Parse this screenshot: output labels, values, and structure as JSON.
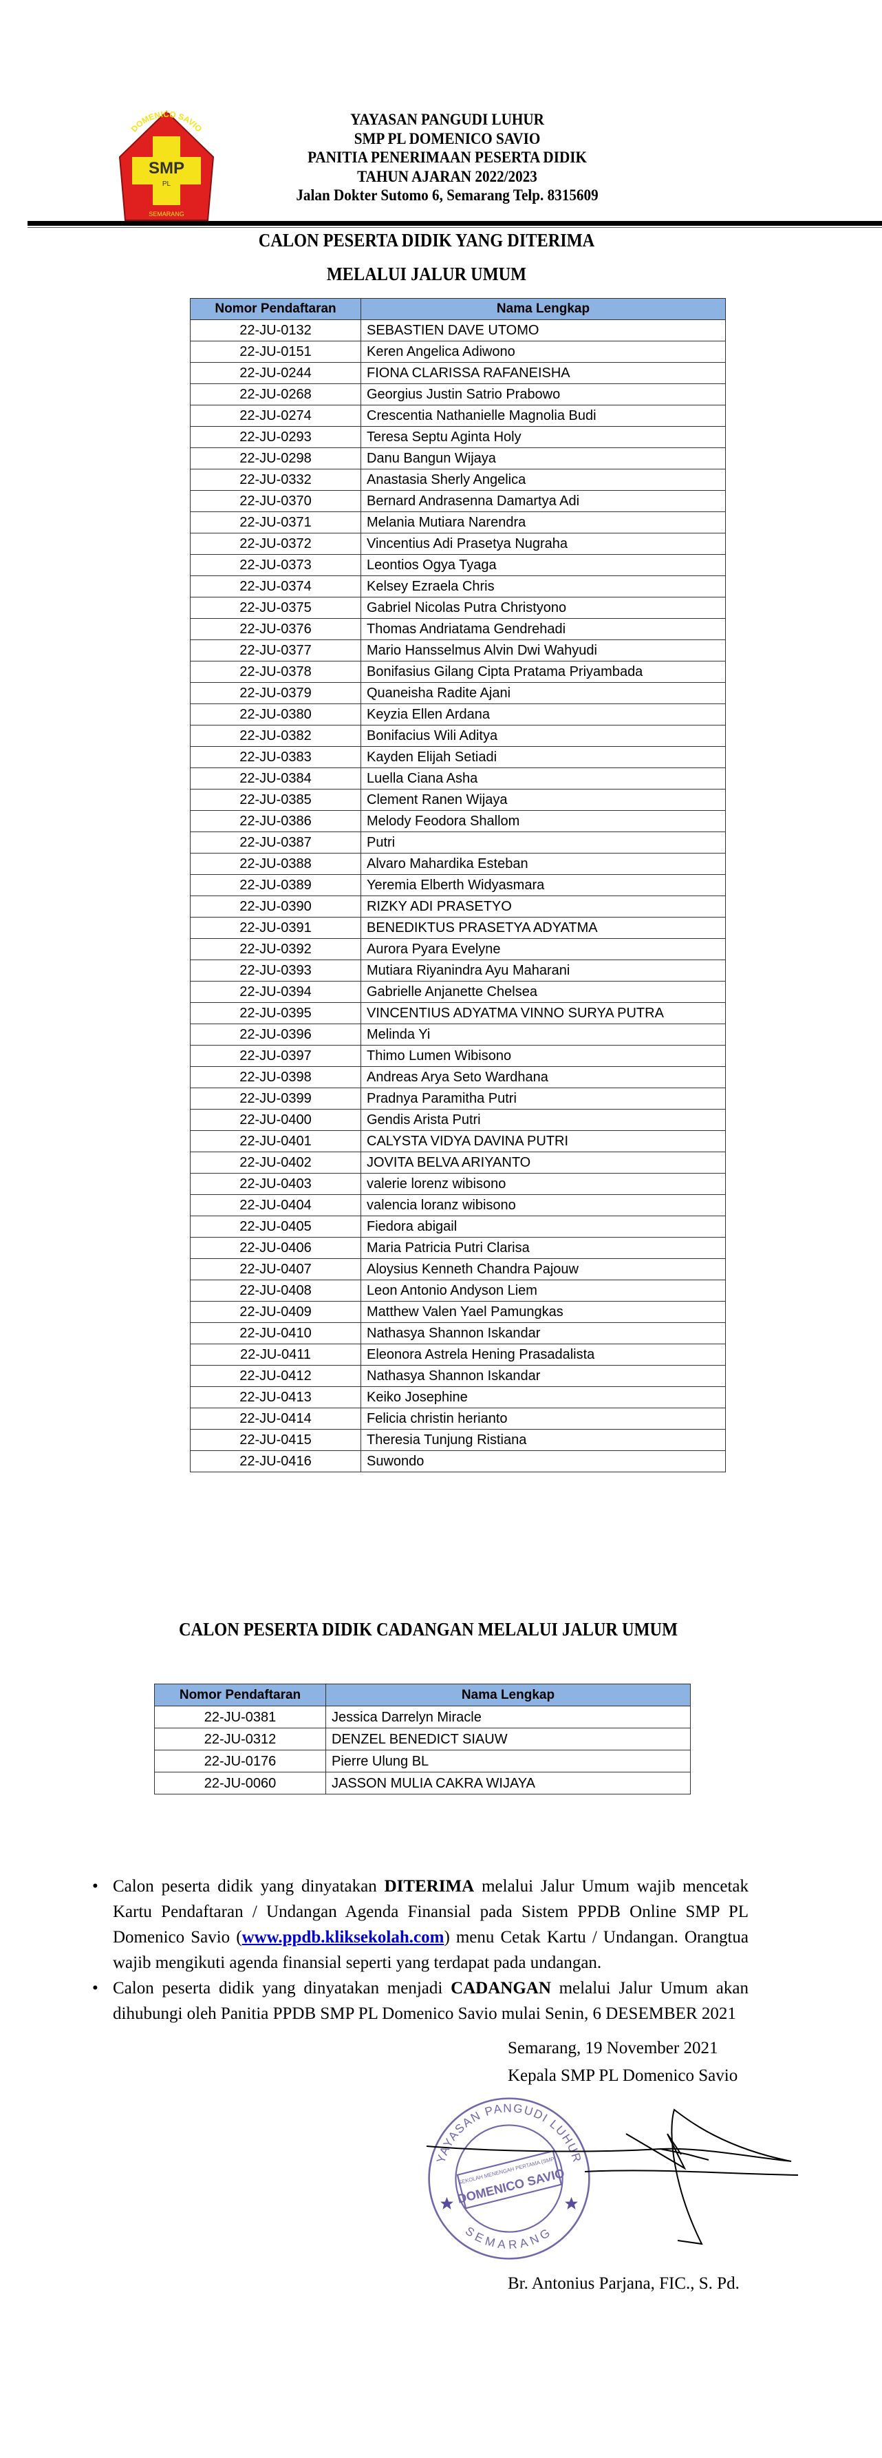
{
  "logo": {
    "ring_text": "DOMENICO SAVIO",
    "center_text": "SMP",
    "sub_text": "PL",
    "bottom_text": "SEMARANG"
  },
  "header": {
    "lines": [
      "YAYASAN PANGUDI LUHUR",
      "SMP PL DOMENICO SAVIO",
      "PANITIA PENERIMAAN PESERTA DIDIK",
      "TAHUN AJARAN 2022/2023",
      "Jalan Dokter Sutomo 6, Semarang Telp. 8315609"
    ]
  },
  "accepted": {
    "title_line1": "CALON PESERTA DIDIK YANG DITERIMA",
    "title_line2": "MELALUI JALUR UMUM",
    "columns": [
      "Nomor Pendaftaran",
      "Nama Lengkap"
    ],
    "rows": [
      [
        "22-JU-0132",
        "SEBASTIEN DAVE UTOMO"
      ],
      [
        "22-JU-0151",
        "Keren Angelica Adiwono"
      ],
      [
        "22-JU-0244",
        "FIONA CLARISSA RAFANEISHA"
      ],
      [
        "22-JU-0268",
        "Georgius Justin Satrio Prabowo"
      ],
      [
        "22-JU-0274",
        "Crescentia Nathanielle Magnolia Budi"
      ],
      [
        "22-JU-0293",
        "Teresa Septu Aginta Holy"
      ],
      [
        "22-JU-0298",
        "Danu Bangun Wijaya"
      ],
      [
        "22-JU-0332",
        "Anastasia Sherly Angelica"
      ],
      [
        "22-JU-0370",
        "Bernard Andrasenna Damartya Adi"
      ],
      [
        "22-JU-0371",
        "Melania Mutiara Narendra"
      ],
      [
        "22-JU-0372",
        "Vincentius Adi Prasetya Nugraha"
      ],
      [
        "22-JU-0373",
        "Leontios Ogya Tyaga"
      ],
      [
        "22-JU-0374",
        "Kelsey Ezraela Chris"
      ],
      [
        "22-JU-0375",
        "Gabriel Nicolas Putra Christyono"
      ],
      [
        "22-JU-0376",
        "Thomas Andriatama Gendrehadi"
      ],
      [
        "22-JU-0377",
        "Mario Hansselmus Alvin Dwi Wahyudi"
      ],
      [
        "22-JU-0378",
        "Bonifasius Gilang Cipta Pratama Priyambada"
      ],
      [
        "22-JU-0379",
        "Quaneisha Radite Ajani"
      ],
      [
        "22-JU-0380",
        "Keyzia Ellen Ardana"
      ],
      [
        "22-JU-0382",
        "Bonifacius Wili Aditya"
      ],
      [
        "22-JU-0383",
        "Kayden Elijah Setiadi"
      ],
      [
        "22-JU-0384",
        "Luella Ciana Asha"
      ],
      [
        "22-JU-0385",
        "Clement Ranen Wijaya"
      ],
      [
        "22-JU-0386",
        "Melody Feodora Shallom"
      ],
      [
        "22-JU-0387",
        "Putri"
      ],
      [
        "22-JU-0388",
        "Alvaro Mahardika Esteban"
      ],
      [
        "22-JU-0389",
        "Yeremia Elberth Widyasmara"
      ],
      [
        "22-JU-0390",
        "RIZKY ADI PRASETYO"
      ],
      [
        "22-JU-0391",
        "BENEDIKTUS PRASETYA ADYATMA"
      ],
      [
        "22-JU-0392",
        "Aurora Pyara Evelyne"
      ],
      [
        "22-JU-0393",
        "Mutiara Riyanindra Ayu Maharani"
      ],
      [
        "22-JU-0394",
        "Gabrielle Anjanette Chelsea"
      ],
      [
        "22-JU-0395",
        "VINCENTIUS ADYATMA VINNO SURYA PUTRA"
      ],
      [
        "22-JU-0396",
        "Melinda Yi"
      ],
      [
        "22-JU-0397",
        "Thimo Lumen Wibisono"
      ],
      [
        "22-JU-0398",
        "Andreas Arya Seto Wardhana"
      ],
      [
        "22-JU-0399",
        "Pradnya Paramitha Putri"
      ],
      [
        "22-JU-0400",
        "Gendis Arista Putri"
      ],
      [
        "22-JU-0401",
        "CALYSTA VIDYA DAVINA PUTRI"
      ],
      [
        "22-JU-0402",
        "JOVITA BELVA ARIYANTO"
      ],
      [
        "22-JU-0403",
        "valerie lorenz wibisono"
      ],
      [
        "22-JU-0404",
        "valencia loranz wibisono"
      ],
      [
        "22-JU-0405",
        "Fiedora abigail"
      ],
      [
        "22-JU-0406",
        "Maria Patricia Putri Clarisa"
      ],
      [
        "22-JU-0407",
        "Aloysius Kenneth Chandra Pajouw"
      ],
      [
        "22-JU-0408",
        "Leon Antonio Andyson Liem"
      ],
      [
        "22-JU-0409",
        "Matthew Valen Yael Pamungkas"
      ],
      [
        "22-JU-0410",
        "Nathasya Shannon Iskandar"
      ],
      [
        "22-JU-0411",
        "Eleonora Astrela Hening Prasadalista"
      ],
      [
        "22-JU-0412",
        "Nathasya Shannon Iskandar"
      ],
      [
        "22-JU-0413",
        "Keiko Josephine"
      ],
      [
        "22-JU-0414",
        "Felicia christin herianto"
      ],
      [
        "22-JU-0415",
        "Theresia Tunjung Ristiana"
      ],
      [
        "22-JU-0416",
        "Suwondo"
      ]
    ]
  },
  "reserve": {
    "title": "CALON PESERTA DIDIK CADANGAN MELALUI JALUR UMUM",
    "columns": [
      "Nomor Pendaftaran",
      "Nama Lengkap"
    ],
    "rows": [
      [
        "22-JU-0381",
        "Jessica Darrelyn Miracle"
      ],
      [
        "22-JU-0312",
        "DENZEL BENEDICT SIAUW"
      ],
      [
        "22-JU-0176",
        "Pierre Ulung BL"
      ],
      [
        "22-JU-0060",
        "JASSON MULIA CAKRA WIJAYA"
      ]
    ]
  },
  "notes": [
    {
      "pre": "Calon peserta didik yang dinyatakan ",
      "bold": "DITERIMA",
      "mid": " melalui Jalur Umum wajib mencetak Kartu Pendaftaran / Undangan Agenda Finansial pada Sistem PPDB Online SMP PL Domenico Savio (",
      "link": "www.ppdb.kliksekolah.com",
      "post": ") menu Cetak Kartu / Undangan. Orangtua wajib mengikuti agenda finansial seperti yang terdapat pada undangan."
    },
    {
      "pre": "Calon peserta didik yang dinyatakan menjadi ",
      "bold": "CADANGAN",
      "mid": " melalui Jalur Umum akan dihubungi oleh Panitia PPDB SMP PL Domenico Savio mulai Senin, 6 DESEMBER 2021",
      "link": "",
      "post": ""
    }
  ],
  "signature": {
    "place_date": "Semarang, 19 November 2021",
    "position": "Kepala SMP PL Domenico Savio",
    "name": "Br. Antonius Parjana, FIC., S. Pd."
  },
  "stamp": {
    "outer_top": "YAYASAN PANGUDI LUHUR",
    "band_small": "SEKOLAH MENENGAH PERTAMA (SMP)",
    "band_main": "DOMENICO SAVIO",
    "outer_bottom": "SEMARANG"
  },
  "colors": {
    "table_header": "#8db3e2",
    "link": "#0000cc",
    "stamp": "#5a4c9c",
    "logo_red": "#e0201f",
    "logo_yellow": "#f6e21a"
  }
}
